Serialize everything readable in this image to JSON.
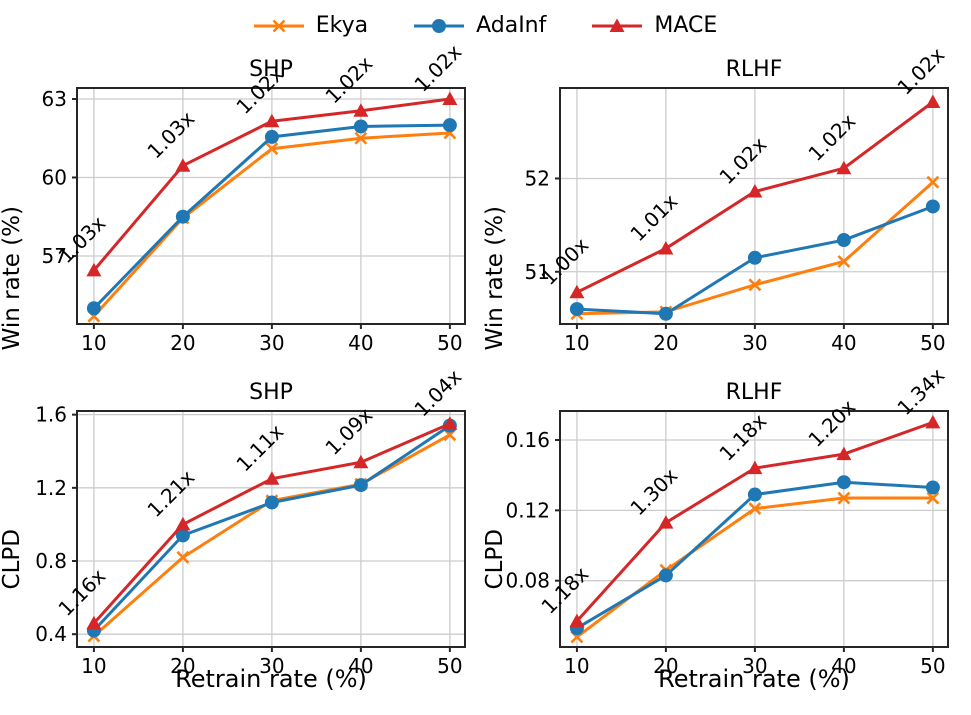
{
  "legend": {
    "items": [
      {
        "label": "Ekya",
        "color": "#ff7f0e",
        "marker": "x"
      },
      {
        "label": "AdaInf",
        "color": "#1f77b4",
        "marker": "circle"
      },
      {
        "label": "MACE",
        "color": "#d62728",
        "marker": "triangle"
      }
    ]
  },
  "shared": {
    "x_label": "Retrain rate (%)",
    "x_ticks": [
      10,
      20,
      30,
      40,
      50
    ],
    "x_tick_labels": [
      "10",
      "20",
      "30",
      "40",
      "50"
    ],
    "xlim": [
      8.1,
      51.7
    ],
    "grid_color": "#cccccc",
    "frame_color": "#262626",
    "annotation_color": "#000000"
  },
  "chart_data": [
    {
      "id": "shp-win-rate",
      "type": "line",
      "title": "SHP",
      "ylabel": "Win rate (%)",
      "show_xlabel": false,
      "x": [
        10,
        20,
        30,
        40,
        50
      ],
      "ylim": [
        54.4,
        63.42
      ],
      "y_ticks": [
        57,
        60,
        63
      ],
      "y_tick_labels": [
        "57",
        "60",
        "63"
      ],
      "series": [
        {
          "name": "Ekya",
          "values": [
            54.7,
            58.45,
            61.1,
            61.5,
            61.7
          ]
        },
        {
          "name": "AdaInf",
          "values": [
            55.0,
            58.5,
            61.55,
            61.95,
            62.0
          ]
        },
        {
          "name": "MACE",
          "values": [
            56.45,
            60.45,
            62.15,
            62.55,
            63.0
          ]
        }
      ],
      "annotations": [
        "1.03x",
        "1.03x",
        "1.02x",
        "1.02x",
        "1.02x"
      ]
    },
    {
      "id": "rlhf-win-rate",
      "type": "line",
      "title": "RLHF",
      "ylabel": "Win rate (%)",
      "show_xlabel": false,
      "x": [
        10,
        20,
        30,
        40,
        50
      ],
      "ylim": [
        50.44,
        52.97
      ],
      "y_ticks": [
        51,
        52
      ],
      "y_tick_labels": [
        "51",
        "52"
      ],
      "series": [
        {
          "name": "Ekya",
          "values": [
            50.55,
            50.57,
            50.86,
            51.11,
            51.96
          ]
        },
        {
          "name": "AdaInf",
          "values": [
            50.6,
            50.55,
            51.15,
            51.34,
            51.7
          ]
        },
        {
          "name": "MACE",
          "values": [
            50.78,
            51.25,
            51.86,
            52.11,
            52.82
          ]
        }
      ],
      "annotations": [
        "1.00x",
        "1.01x",
        "1.02x",
        "1.02x",
        "1.02x"
      ]
    },
    {
      "id": "shp-clpd",
      "type": "line",
      "title": "SHP",
      "ylabel": "CLPD",
      "show_xlabel": true,
      "x": [
        10,
        20,
        30,
        40,
        50
      ],
      "ylim": [
        0.33,
        1.62
      ],
      "y_ticks": [
        0.4,
        0.8,
        1.2,
        1.6
      ],
      "y_tick_labels": [
        "0.4",
        "0.8",
        "1.2",
        "1.6"
      ],
      "series": [
        {
          "name": "Ekya",
          "values": [
            0.39,
            0.82,
            1.13,
            1.22,
            1.49
          ]
        },
        {
          "name": "AdaInf",
          "values": [
            0.42,
            0.94,
            1.12,
            1.215,
            1.54
          ]
        },
        {
          "name": "MACE",
          "values": [
            0.46,
            1.0,
            1.25,
            1.34,
            1.55
          ]
        }
      ],
      "annotations": [
        "1.16x",
        "1.21x",
        "1.11x",
        "1.09x",
        "1.04x"
      ]
    },
    {
      "id": "rlhf-clpd",
      "type": "line",
      "title": "RLHF",
      "ylabel": "CLPD",
      "show_xlabel": true,
      "x": [
        10,
        20,
        30,
        40,
        50
      ],
      "ylim": [
        0.0423,
        0.1765
      ],
      "y_ticks": [
        0.08,
        0.12,
        0.16
      ],
      "y_tick_labels": [
        "0.08",
        "0.12",
        "0.16"
      ],
      "series": [
        {
          "name": "Ekya",
          "values": [
            0.048,
            0.086,
            0.121,
            0.127,
            0.127
          ]
        },
        {
          "name": "AdaInf",
          "values": [
            0.053,
            0.083,
            0.129,
            0.136,
            0.133
          ]
        },
        {
          "name": "MACE",
          "values": [
            0.057,
            0.113,
            0.144,
            0.152,
            0.17
          ]
        }
      ],
      "annotations": [
        "1.18x",
        "1.30x",
        "1.18x",
        "1.20x",
        "1.34x"
      ]
    }
  ]
}
